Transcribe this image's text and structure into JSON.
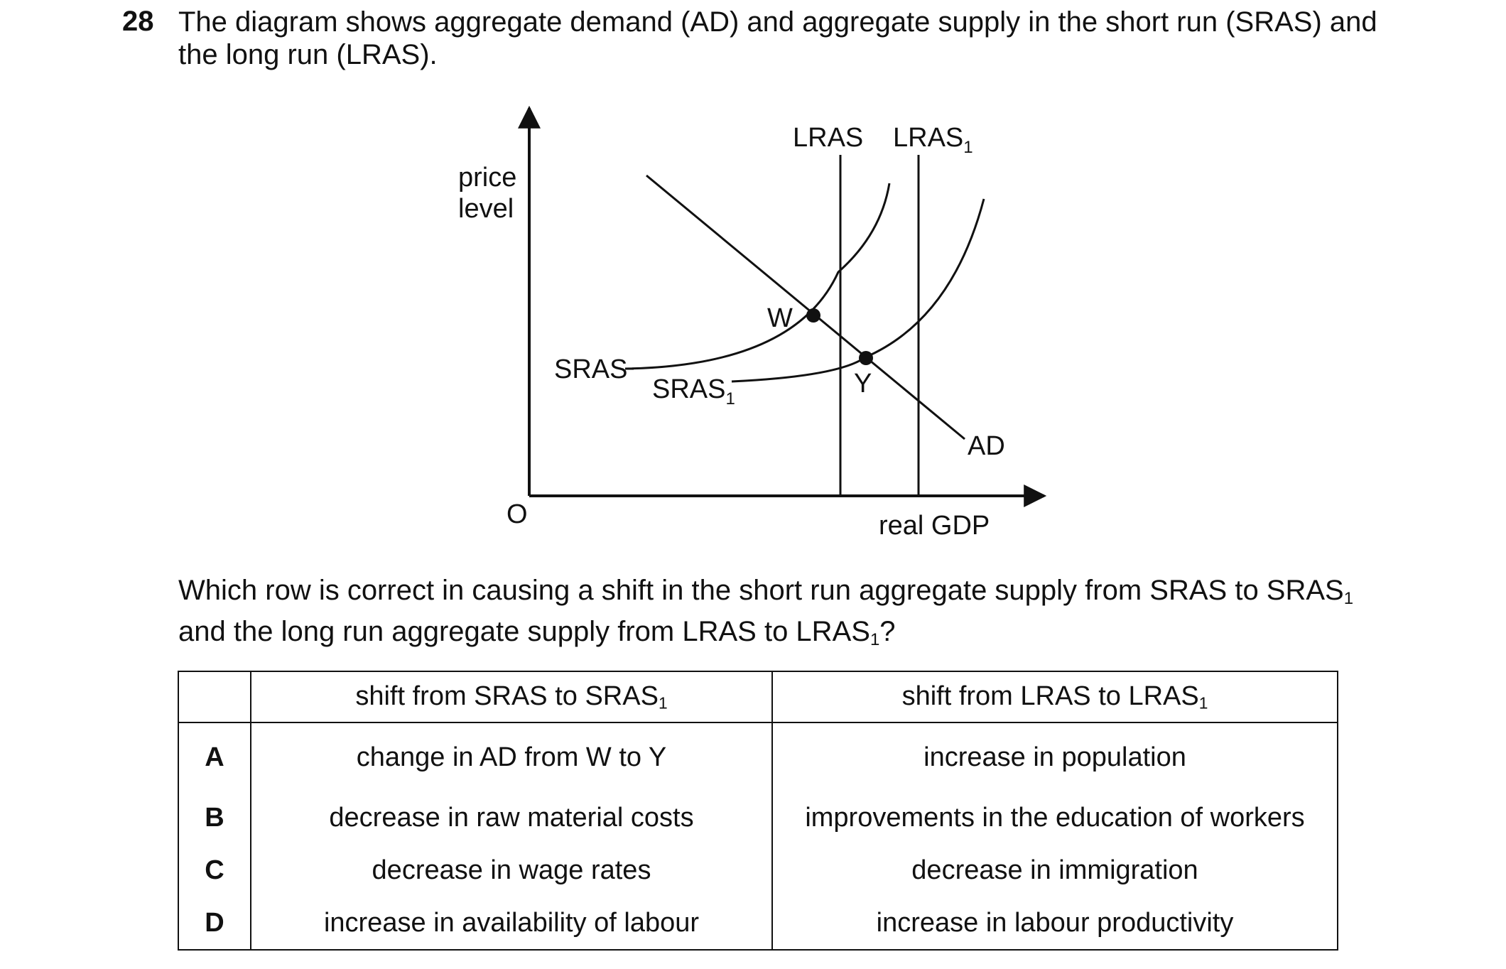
{
  "question": {
    "number": "28",
    "line1": "The diagram shows aggregate demand (AD) and aggregate supply in the short run (SRAS) and",
    "line2": "the long run (LRAS)."
  },
  "diagram": {
    "y_axis_label_line1": "price",
    "y_axis_label_line2": "level",
    "x_axis_label": "real GDP",
    "origin_label": "O",
    "lras_label": "LRAS",
    "lras1_label": "LRAS",
    "lras1_subscript": "1",
    "sras_label": "SRAS",
    "sras1_label": "SRAS",
    "sras1_subscript": "1",
    "ad_label": "AD",
    "point_w_label": "W",
    "point_y_label": "Y"
  },
  "prompt": {
    "line1_text": "Which row is correct in causing a shift in the short run aggregate supply from SRAS to SRAS",
    "line1_subscript": "1",
    "line2_text": "and the long run aggregate supply from LRAS to LRAS",
    "line2_subscript": "1",
    "line2_end": "?"
  },
  "table": {
    "header_col1_text": "shift from SRAS to SRAS",
    "header_col1_subscript": "1",
    "header_col2_text": "shift from LRAS to LRAS",
    "header_col2_subscript": "1",
    "rows": [
      {
        "letter": "A",
        "sras": "change in AD from W to Y",
        "lras": "increase in population"
      },
      {
        "letter": "B",
        "sras": "decrease in raw material costs",
        "lras": "improvements in the education of workers"
      },
      {
        "letter": "C",
        "sras": "decrease in wage rates",
        "lras": "decrease in immigration"
      },
      {
        "letter": "D",
        "sras": "increase in availability of labour",
        "lras": "increase in labour productivity"
      }
    ]
  }
}
